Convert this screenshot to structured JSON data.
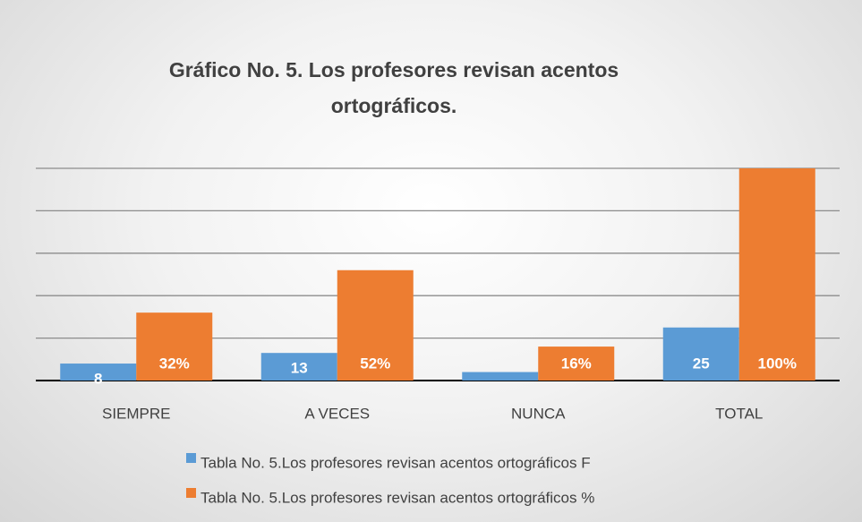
{
  "chart_data": {
    "type": "bar",
    "title": "Gráfico No. 5. Los profesores revisan acentos ortográficos.",
    "categories": [
      "SIEMPRE",
      "A VECES",
      "NUNCA",
      "TOTAL"
    ],
    "series": [
      {
        "name": "Tabla No. 5.Los profesores revisan acentos ortográficos F",
        "color": "#5b9bd5",
        "values": [
          8,
          13,
          4,
          25
        ],
        "value_labels": [
          "8",
          "13",
          null,
          "25"
        ]
      },
      {
        "name": "Tabla No. 5.Los profesores revisan acentos ortográficos %",
        "color": "#ed7d31",
        "values": [
          32,
          52,
          16,
          100
        ],
        "value_labels": [
          "32%",
          "52%",
          "16%",
          "100%"
        ]
      }
    ],
    "ylim": [
      0,
      100
    ],
    "yticks": [
      0,
      20,
      40,
      60,
      80,
      100
    ],
    "grid": true,
    "legend": "bottom"
  }
}
